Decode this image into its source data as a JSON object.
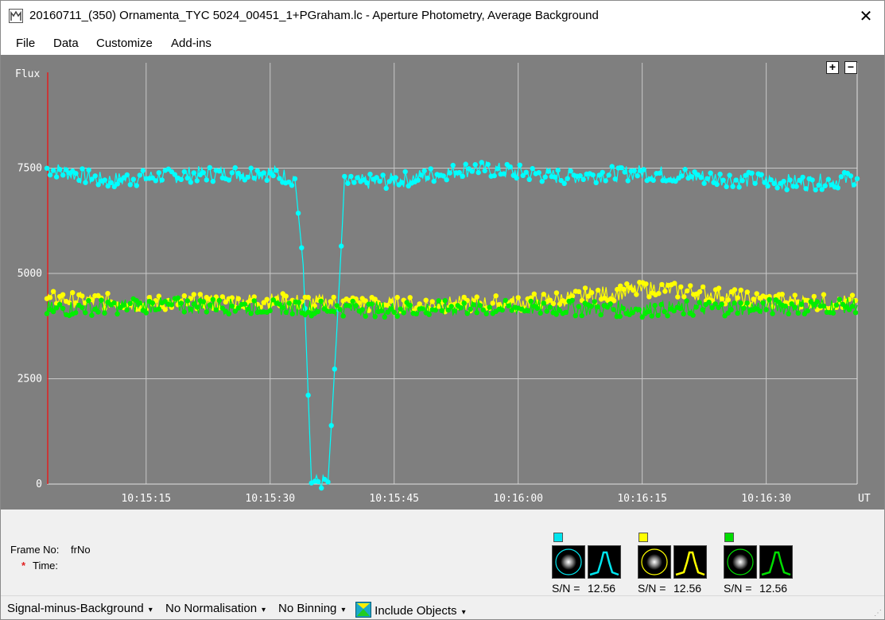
{
  "window": {
    "title": "20160711_(350) Ornamenta_TYC 5024_00451_1+PGraham.lc - Aperture Photometry, Average Background",
    "close_glyph": "✕"
  },
  "menu": {
    "items": [
      {
        "label": "File"
      },
      {
        "label": "Data"
      },
      {
        "label": "Customize"
      },
      {
        "label": "Add-ins"
      }
    ]
  },
  "zoom": {
    "plus": "+",
    "minus": "−"
  },
  "chart_data": {
    "type": "scatter",
    "title": "",
    "ylabel": "Flux",
    "xlabel": "UT",
    "ylim": [
      0,
      10000
    ],
    "xlim": [
      "10:15:03",
      "10:16:41"
    ],
    "y_ticks": [
      0,
      2500,
      5000,
      7500
    ],
    "x_ticks": [
      "10:15:15",
      "10:15:30",
      "10:15:45",
      "10:16:00",
      "10:16:15",
      "10:16:30"
    ],
    "grid": true,
    "series": [
      {
        "color": "#00ffff",
        "values_description": [
          {
            "x": "10:15:03",
            "y": 7500
          },
          {
            "x": "10:15:10",
            "y": 7200
          },
          {
            "x": "10:15:20",
            "y": 7350
          },
          {
            "x": "10:15:30",
            "y": 7400
          },
          {
            "x": "10:15:33",
            "y": 7250
          },
          {
            "x": "10:15:34",
            "y": 5200
          },
          {
            "x": "10:15:35",
            "y": 50
          },
          {
            "x": "10:15:37",
            "y": 50
          },
          {
            "x": "10:15:38",
            "y": 3400
          },
          {
            "x": "10:15:39",
            "y": 7150
          },
          {
            "x": "10:15:45",
            "y": 7200
          },
          {
            "x": "10:15:55",
            "y": 7500
          },
          {
            "x": "10:16:05",
            "y": 7300
          },
          {
            "x": "10:16:15",
            "y": 7400
          },
          {
            "x": "10:16:25",
            "y": 7250
          },
          {
            "x": "10:16:35",
            "y": 7150
          },
          {
            "x": "10:16:41",
            "y": 7250
          }
        ]
      },
      {
        "color": "#ffff00",
        "values_description": [
          {
            "x": "10:15:03",
            "y": 4400
          },
          {
            "x": "10:15:15",
            "y": 4300
          },
          {
            "x": "10:15:30",
            "y": 4350
          },
          {
            "x": "10:15:45",
            "y": 4250
          },
          {
            "x": "10:16:00",
            "y": 4300
          },
          {
            "x": "10:16:17",
            "y": 4650
          },
          {
            "x": "10:16:30",
            "y": 4350
          },
          {
            "x": "10:16:41",
            "y": 4300
          }
        ]
      },
      {
        "color": "#00ee00",
        "values_description": [
          {
            "x": "10:15:03",
            "y": 4150
          },
          {
            "x": "10:15:15",
            "y": 4250
          },
          {
            "x": "10:15:30",
            "y": 4200
          },
          {
            "x": "10:15:45",
            "y": 4150
          },
          {
            "x": "10:16:00",
            "y": 4200
          },
          {
            "x": "10:16:15",
            "y": 4150
          },
          {
            "x": "10:16:30",
            "y": 4200
          },
          {
            "x": "10:16:41",
            "y": 4250
          }
        ]
      }
    ]
  },
  "info": {
    "frame_label": "Frame No:",
    "frame_value": "frNo",
    "time_star": "*",
    "time_label": "Time:"
  },
  "targets": [
    {
      "color": "#00e5ee",
      "sn_label": "S/N =",
      "sn_value": "12.56",
      "thumb_icon": "star-thumbnail-icon",
      "profile_icon": "psf-profile-icon"
    },
    {
      "color": "#ffff00",
      "sn_label": "S/N =",
      "sn_value": "12.56",
      "thumb_icon": "star-thumbnail-icon",
      "profile_icon": "psf-profile-icon"
    },
    {
      "color": "#00dd00",
      "sn_label": "S/N =",
      "sn_value": "12.56",
      "thumb_icon": "star-thumbnail-icon",
      "profile_icon": "psf-profile-icon"
    }
  ],
  "statusbar": {
    "signal": "Signal-minus-Background",
    "normalisation": "No Normalisation",
    "binning": "No Binning",
    "include": "Include Objects",
    "dropdown_glyph": "▾"
  }
}
